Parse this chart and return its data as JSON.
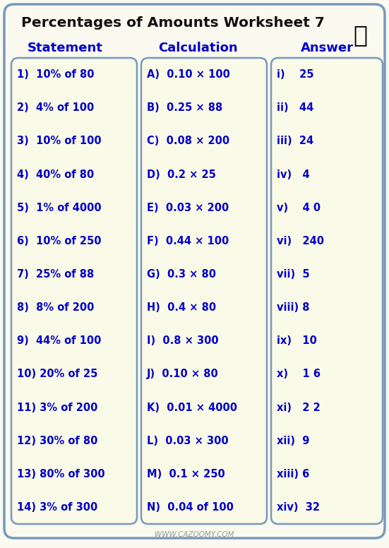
{
  "title": "Percentages of Amounts Worksheet 7",
  "col_headers": [
    "Statement",
    "Calculation",
    "Answer"
  ],
  "statements": [
    "1)  10% of 80",
    "2)  4% of 100",
    "3)  10% of 100",
    "4)  40% of 80",
    "5)  1% of 4000",
    "6)  10% of 250",
    "7)  25% of 88",
    "8)  8% of 200",
    "9)  44% of 100",
    "10) 20% of 25",
    "11) 3% of 200",
    "12) 30% of 80",
    "13) 80% of 300",
    "14) 3% of 300"
  ],
  "calculations": [
    "A)  0.10 × 100",
    "B)  0.25 × 88",
    "C)  0.08 × 200",
    "D)  0.2 × 25",
    "E)  0.03 × 200",
    "F)  0.44 × 100",
    "G)  0.3 × 80",
    "H)  0.4 × 80",
    "I)  0.8 × 300",
    "J)  0.10 × 80",
    "K)  0.01 × 4000",
    "L)  0.03 × 300",
    "M)  0.1 × 250",
    "N)  0.04 of 100"
  ],
  "answers": [
    "i)    25",
    "ii)   44",
    "iii)  24",
    "iv)   4",
    "v)    4 0",
    "vi)   240",
    "vii)  5",
    "viii) 8",
    "ix)   10",
    "x)    1 6",
    "xi)   2 2",
    "xii)  9",
    "xiii) 6",
    "xiv)  32"
  ],
  "bg_color": "#FAFAF0",
  "box_bg": "#FAFAE8",
  "outer_border_color": "#7799BB",
  "col_border_color": "#7799BB",
  "text_color": "#0000CC",
  "title_color": "#111111",
  "header_color": "#0000CC",
  "website": "WWW.CAZOOMY.COM",
  "website_color": "#999999",
  "figw": 5.51,
  "figh": 7.76,
  "dpi": 100
}
